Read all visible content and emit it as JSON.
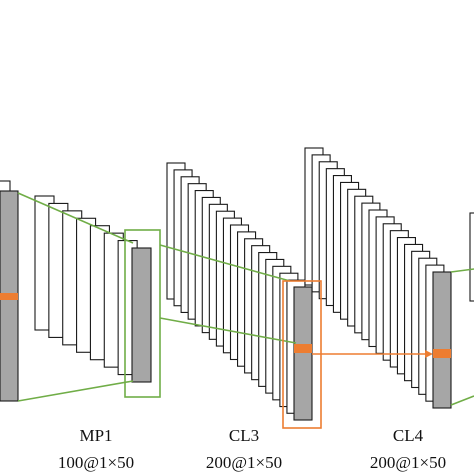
{
  "diagram": {
    "colors": {
      "feature_map_fill": "#a6a6a6",
      "stacked_map_fill": "#ffffff",
      "outline": "#1a1a1a",
      "kernel_green": "#70ad47",
      "kernel_orange": "#ed7d31"
    },
    "layers": [
      {
        "id": "mp1",
        "name": "MP1",
        "shape": "100@1×50"
      },
      {
        "id": "cl3",
        "name": "CL3",
        "shape": "200@1×50"
      },
      {
        "id": "cl4",
        "name": "CL4",
        "shape": "200@1×50"
      }
    ]
  }
}
